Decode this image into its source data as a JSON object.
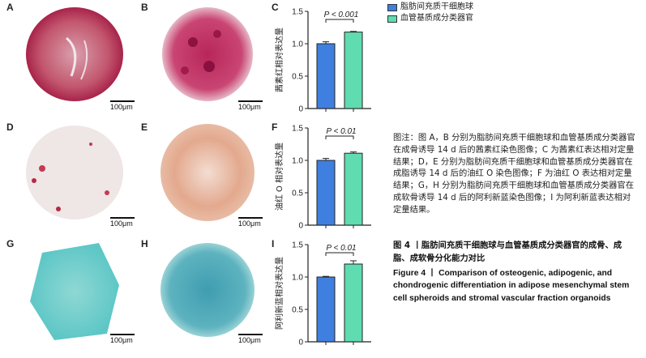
{
  "panels": {
    "A": {
      "letter": "A",
      "scale": "100μm"
    },
    "B": {
      "letter": "B",
      "scale": "100μm"
    },
    "C": {
      "letter": "C"
    },
    "D": {
      "letter": "D",
      "scale": "100μm"
    },
    "E": {
      "letter": "E",
      "scale": "100μm"
    },
    "F": {
      "letter": "F"
    },
    "G": {
      "letter": "G",
      "scale": "100μm"
    },
    "H": {
      "letter": "H",
      "scale": "100μm"
    },
    "I": {
      "letter": "I"
    }
  },
  "legend": {
    "items": [
      {
        "label": "脂肪间充质干细胞球",
        "color": "#3f7fe0"
      },
      {
        "label": "血管基质成分类器官",
        "color": "#5fdcb0"
      }
    ]
  },
  "colors": {
    "series1": "#3f7fe0",
    "series2": "#5fdcb0"
  },
  "chart_data": [
    {
      "type": "bar",
      "categories": [
        "脂肪间充质干细胞球",
        "血管基质成分类器官"
      ],
      "values": [
        1.0,
        1.18
      ],
      "errors": [
        0.03,
        0.01
      ],
      "ylabel": "茜素红相对表达量",
      "ylim": [
        0,
        1.5
      ],
      "yticks": [
        "0",
        "0.5",
        "1.0",
        "1.5"
      ],
      "annotation": "P < 0.001"
    },
    {
      "type": "bar",
      "categories": [
        "脂肪间充质干细胞球",
        "血管基质成分类器官"
      ],
      "values": [
        1.0,
        1.11
      ],
      "errors": [
        0.03,
        0.02
      ],
      "ylabel": "油红 O 相对表达量",
      "ylim": [
        0,
        1.5
      ],
      "yticks": [
        "0",
        "0.5",
        "1.0",
        "1.5"
      ],
      "annotation": "P < 0.01"
    },
    {
      "type": "bar",
      "categories": [
        "脂肪间充质干细胞球",
        "血管基质成分类器官"
      ],
      "values": [
        1.0,
        1.2
      ],
      "errors": [
        0.01,
        0.05
      ],
      "ylabel": "阿利新蓝相对表达量",
      "ylim": [
        0,
        1.5
      ],
      "yticks": [
        "0",
        "0.5",
        "1.0",
        "1.5"
      ],
      "annotation": "P < 0.01"
    }
  ],
  "caption": "图注：图 A，B 分别为脂肪间充质干细胞球和血管基质成分类器官在成骨诱导 14 d 后的茜素红染色图像；C 为茜素红表达相对定量结果；D，E 分别为脂肪间充质干细胞球和血管基质成分类器官在成脂诱导 14 d 后的油红 O 染色图像；F 为油红 O 表达相对定量结果；G，H 分别为脂肪间充质干细胞球和血管基质成分类器官在成软骨诱导 14 d 后的阿利新蓝染色图像；I 为阿利新蓝表达相对定量结果。",
  "figure_title_zh": "图 4 丨脂肪间充质干细胞球与血管基质成分类器官的成骨、成脂、成软骨分化能力对比",
  "figure_title_en": "Figure 4 丨 Comparison of osteogenic, adipogenic, and chondrogenic differentiation in adipose mesenchymal stem cell spheroids and stromal vascular fraction organoids"
}
